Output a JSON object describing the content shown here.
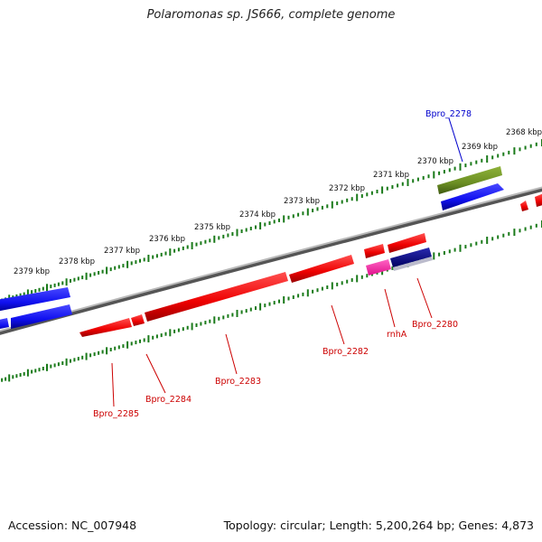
{
  "title": "Polaromonas sp. JS666, complete genome",
  "footer": {
    "accession": "Accession: NC_007948",
    "summary": "Topology: circular; Length: 5,200,264 bp; Genes: 4,873"
  },
  "ticks": [
    "2368 kbp",
    "2369 kbp",
    "2370 kbp",
    "2371 kbp",
    "2372 kbp",
    "2373 kbp",
    "2374 kbp",
    "2375 kbp",
    "2376 kbp",
    "2377 kbp",
    "2378 kbp",
    "2379 kbp"
  ],
  "genes": [
    {
      "label": "Bpro_2278",
      "color": "#0000cc"
    },
    {
      "label": "Bpro_2280",
      "color": "#cc0000"
    },
    {
      "label": "rnhA",
      "color": "#cc0000"
    },
    {
      "label": "Bpro_2282",
      "color": "#cc0000"
    },
    {
      "label": "Bpro_2283",
      "color": "#cc0000"
    },
    {
      "label": "Bpro_2284",
      "color": "#cc0000"
    },
    {
      "label": "Bpro_2285",
      "color": "#cc0000"
    }
  ],
  "colors": {
    "forward": "#1f1fff",
    "reverse": "#ff1010",
    "rna": "#6b8e23",
    "pink": "#ff1aa0",
    "navy": "#000080",
    "tick": "#1a7a1a",
    "backbone": "#888888"
  }
}
